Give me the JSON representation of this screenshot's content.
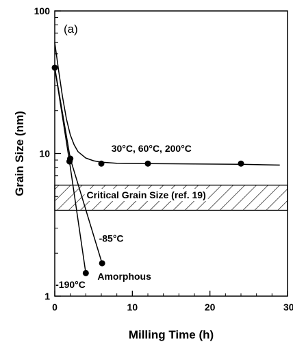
{
  "chart_data": {
    "type": "line",
    "panel_label": "(a)",
    "xlabel": "Milling Time (h)",
    "ylabel": "Grain Size (nm)",
    "xlim": [
      0,
      30
    ],
    "ylim": [
      1,
      100
    ],
    "yscale": "log",
    "grid": false,
    "legend": "none",
    "x_ticks": [
      0,
      10,
      20,
      30
    ],
    "x_tick_labels": [
      "0",
      "10",
      "20",
      "30"
    ],
    "y_ticks": [
      1,
      10,
      100
    ],
    "y_tick_labels": [
      "1",
      "10",
      "100"
    ],
    "series": [
      {
        "name": "30°C, 60°C, 200°C",
        "fit_curve": [
          {
            "x": 0,
            "y": 60
          },
          {
            "x": 0.5,
            "y": 38
          },
          {
            "x": 1,
            "y": 25
          },
          {
            "x": 1.5,
            "y": 17.5
          },
          {
            "x": 2,
            "y": 13.5
          },
          {
            "x": 2.5,
            "y": 11.5
          },
          {
            "x": 3,
            "y": 10.3
          },
          {
            "x": 4,
            "y": 9.3
          },
          {
            "x": 5,
            "y": 8.9
          },
          {
            "x": 6,
            "y": 8.7
          },
          {
            "x": 8,
            "y": 8.55
          },
          {
            "x": 12,
            "y": 8.5
          },
          {
            "x": 18,
            "y": 8.45
          },
          {
            "x": 24,
            "y": 8.4
          },
          {
            "x": 29,
            "y": 8.3
          }
        ],
        "points": [
          {
            "x": 0,
            "y": 40
          },
          {
            "x": 2,
            "y": 9.2
          },
          {
            "x": 6,
            "y": 8.5
          },
          {
            "x": 12,
            "y": 8.5
          },
          {
            "x": 24,
            "y": 8.5
          }
        ]
      },
      {
        "name": "-85°C",
        "fit_curve": [
          {
            "x": 0,
            "y": 40
          },
          {
            "x": 2,
            "y": 9.2
          },
          {
            "x": 6.1,
            "y": 1.7
          }
        ],
        "points": [
          {
            "x": 2,
            "y": 9.2
          },
          {
            "x": 6.1,
            "y": 1.7
          }
        ]
      },
      {
        "name": "-190°C",
        "fit_curve": [
          {
            "x": 0,
            "y": 40
          },
          {
            "x": 1.9,
            "y": 8.8
          },
          {
            "x": 4,
            "y": 1.45
          }
        ],
        "points": [
          {
            "x": 1.9,
            "y": 8.8
          },
          {
            "x": 4,
            "y": 1.45
          }
        ]
      }
    ],
    "band": {
      "label": "Critical Grain Size (ref. 19)",
      "y_min": 4,
      "y_max": 6
    },
    "annotations": [
      {
        "text": "30°C, 60°C, 200°C",
        "x": 7.3,
        "y": 10.3
      },
      {
        "text": "Critical Grain Size (ref. 19)",
        "x": 4.1,
        "y": 4.85
      },
      {
        "text": "-85°C",
        "x": 5.7,
        "y": 2.4
      },
      {
        "text": "Amorphous",
        "x": 5.5,
        "y": 1.3
      },
      {
        "text": "-190°C",
        "x": 0.1,
        "y": 1.14
      }
    ]
  }
}
